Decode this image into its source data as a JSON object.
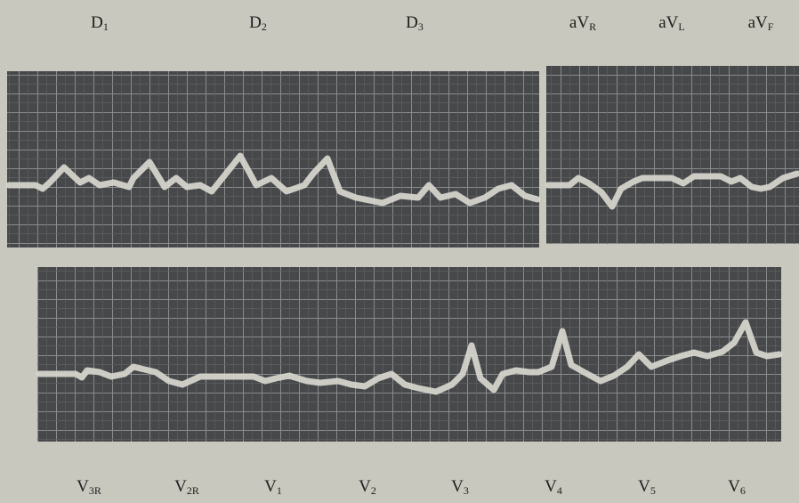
{
  "leads": {
    "top": [
      {
        "base": "D",
        "sub": "1"
      },
      {
        "base": "D",
        "sub": "2"
      },
      {
        "base": "D",
        "sub": "3"
      },
      {
        "base": "aV",
        "sub": "R"
      },
      {
        "base": "aV",
        "sub": "L"
      },
      {
        "base": "aV",
        "sub": "F"
      }
    ],
    "bottom": [
      {
        "base": "V",
        "sub": "3R"
      },
      {
        "base": "V",
        "sub": "2R"
      },
      {
        "base": "V",
        "sub": "1"
      },
      {
        "base": "V",
        "sub": "2"
      },
      {
        "base": "V",
        "sub": "3"
      },
      {
        "base": "V",
        "sub": "4"
      },
      {
        "base": "V",
        "sub": "5"
      },
      {
        "base": "V",
        "sub": "6"
      }
    ]
  }
}
